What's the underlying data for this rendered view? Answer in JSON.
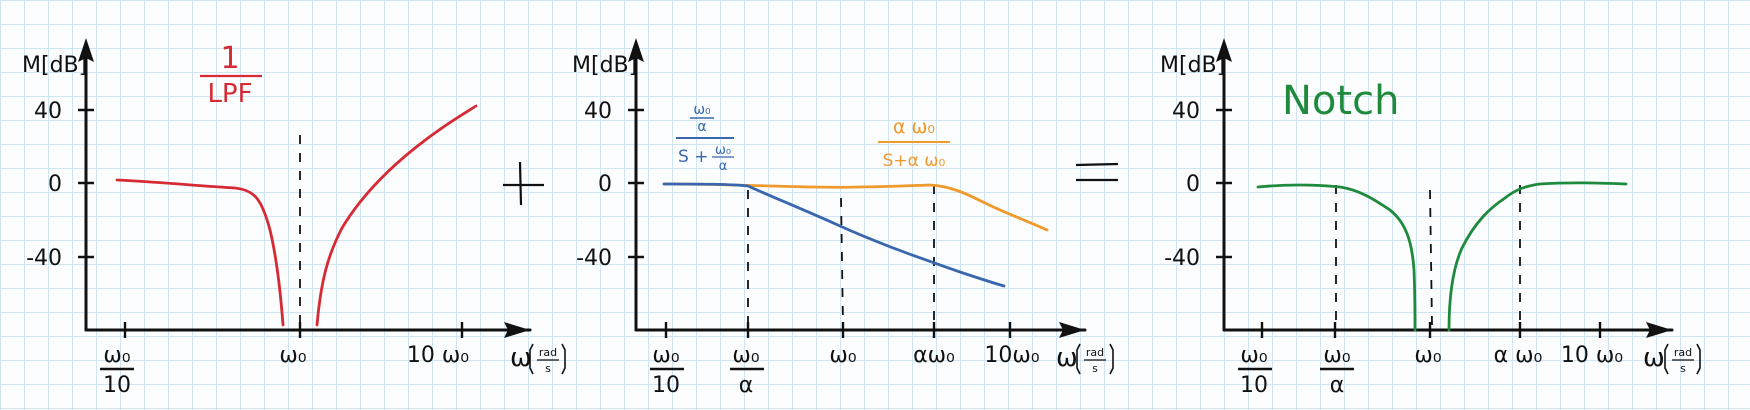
{
  "colors": {
    "red": "#d62b35",
    "blue": "#3a66ad",
    "orange": "#ef9a2c",
    "green": "#1f8a3c",
    "ink": "#111111"
  },
  "axis_text": {
    "y": "M[dB]",
    "x_symbol": "ω",
    "x_unit_num": "rad",
    "x_unit_den": "s",
    "y_ticks": [
      "40",
      "0",
      "-40"
    ]
  },
  "operators": {
    "plus": "+",
    "equals": "="
  },
  "panel1": {
    "label_num": "1",
    "label_den": "LPF",
    "x_ticks": {
      "w10_num": "ω₀",
      "w10_den": "10",
      "w0": "ω₀",
      "ten_w0": "10 ω₀"
    }
  },
  "panel2": {
    "blue_label": {
      "top_num": "ω₀",
      "top_den": "α",
      "bottom": "S +",
      "bottom_num": "ω₀",
      "bottom_den": "α"
    },
    "orange_label": {
      "num": "α ω₀",
      "den": "S+α ω₀"
    },
    "x_ticks": {
      "w10_num": "ω₀",
      "w10_den": "10",
      "wa_num": "ω₀",
      "wa_den": "α",
      "w0": "ω₀",
      "aw0": "αω₀",
      "ten_w0": "10ω₀"
    }
  },
  "panel3": {
    "label": "Notch",
    "x_ticks": {
      "w10_num": "ω₀",
      "w10_den": "10",
      "wa_num": "ω₀",
      "wa_den": "α",
      "w0": "ω₀",
      "aw0": "α ω₀",
      "ten_w0": "10 ω₀"
    }
  },
  "chart_data": [
    {
      "type": "line",
      "title": "1/LPF",
      "xlabel": "ω [rad/s]",
      "ylabel": "M[dB]",
      "x_scale": "log",
      "x_ticks": [
        "ω₀/10",
        "ω₀",
        "10 ω₀"
      ],
      "y_ticks": [
        40,
        0,
        -40
      ],
      "series": [
        {
          "name": "1/LPF",
          "color": "red",
          "x": [
            0.1,
            0.2,
            0.35,
            0.45,
            0.6,
            0.75,
            0.9
          ],
          "y": [
            0,
            -2,
            -4,
            -5,
            -20,
            -50,
            -78
          ]
        },
        {
          "color": "red",
          "x": [
            1.1,
            1.2,
            1.5,
            2,
            3,
            5,
            8,
            10
          ],
          "y": [
            -78,
            -45,
            -20,
            -5,
            5,
            20,
            35,
            42
          ]
        }
      ],
      "vlines": [
        1
      ]
    },
    {
      "type": "line",
      "xlabel": "ω [rad/s]",
      "ylabel": "M[dB]",
      "x_scale": "log",
      "x_ticks": [
        "ω₀/10",
        "ω₀/α",
        "ω₀",
        "αω₀",
        "10ω₀"
      ],
      "y_ticks": [
        40,
        0,
        -40
      ],
      "series": [
        {
          "name": "(ω₀/α)/(S + ω₀/α)",
          "color": "blue",
          "x": [
            0.1,
            0.3,
            0.4,
            0.6,
            1,
            2,
            4,
            7
          ],
          "y": [
            0,
            0,
            -1,
            -5,
            -15,
            -27,
            -40,
            -56
          ]
        },
        {
          "name": "α ω₀/(S+α ω₀)",
          "color": "orange",
          "x": [
            0.1,
            1,
            2.5,
            4,
            6,
            10
          ],
          "y": [
            0,
            -2,
            -1,
            -5,
            -15,
            -24
          ]
        }
      ],
      "vlines": [
        0.4,
        1,
        2.5
      ]
    },
    {
      "type": "line",
      "title": "Notch",
      "xlabel": "ω [rad/s]",
      "ylabel": "M[dB]",
      "x_scale": "log",
      "x_ticks": [
        "ω₀/10",
        "ω₀/α",
        "ω₀",
        "α ω₀",
        "10 ω₀"
      ],
      "y_ticks": [
        40,
        0,
        -40
      ],
      "series": [
        {
          "name": "Notch",
          "color": "green",
          "x": [
            0.1,
            0.4,
            0.5,
            0.7,
            0.85,
            0.9,
            1.15,
            1.3,
            1.6,
            2.5,
            4,
            10
          ],
          "y": [
            -2,
            -3,
            -8,
            -20,
            -50,
            -80,
            -80,
            -45,
            -25,
            -5,
            0,
            0
          ]
        }
      ],
      "vlines": [
        0.4,
        1,
        2.5
      ]
    }
  ]
}
